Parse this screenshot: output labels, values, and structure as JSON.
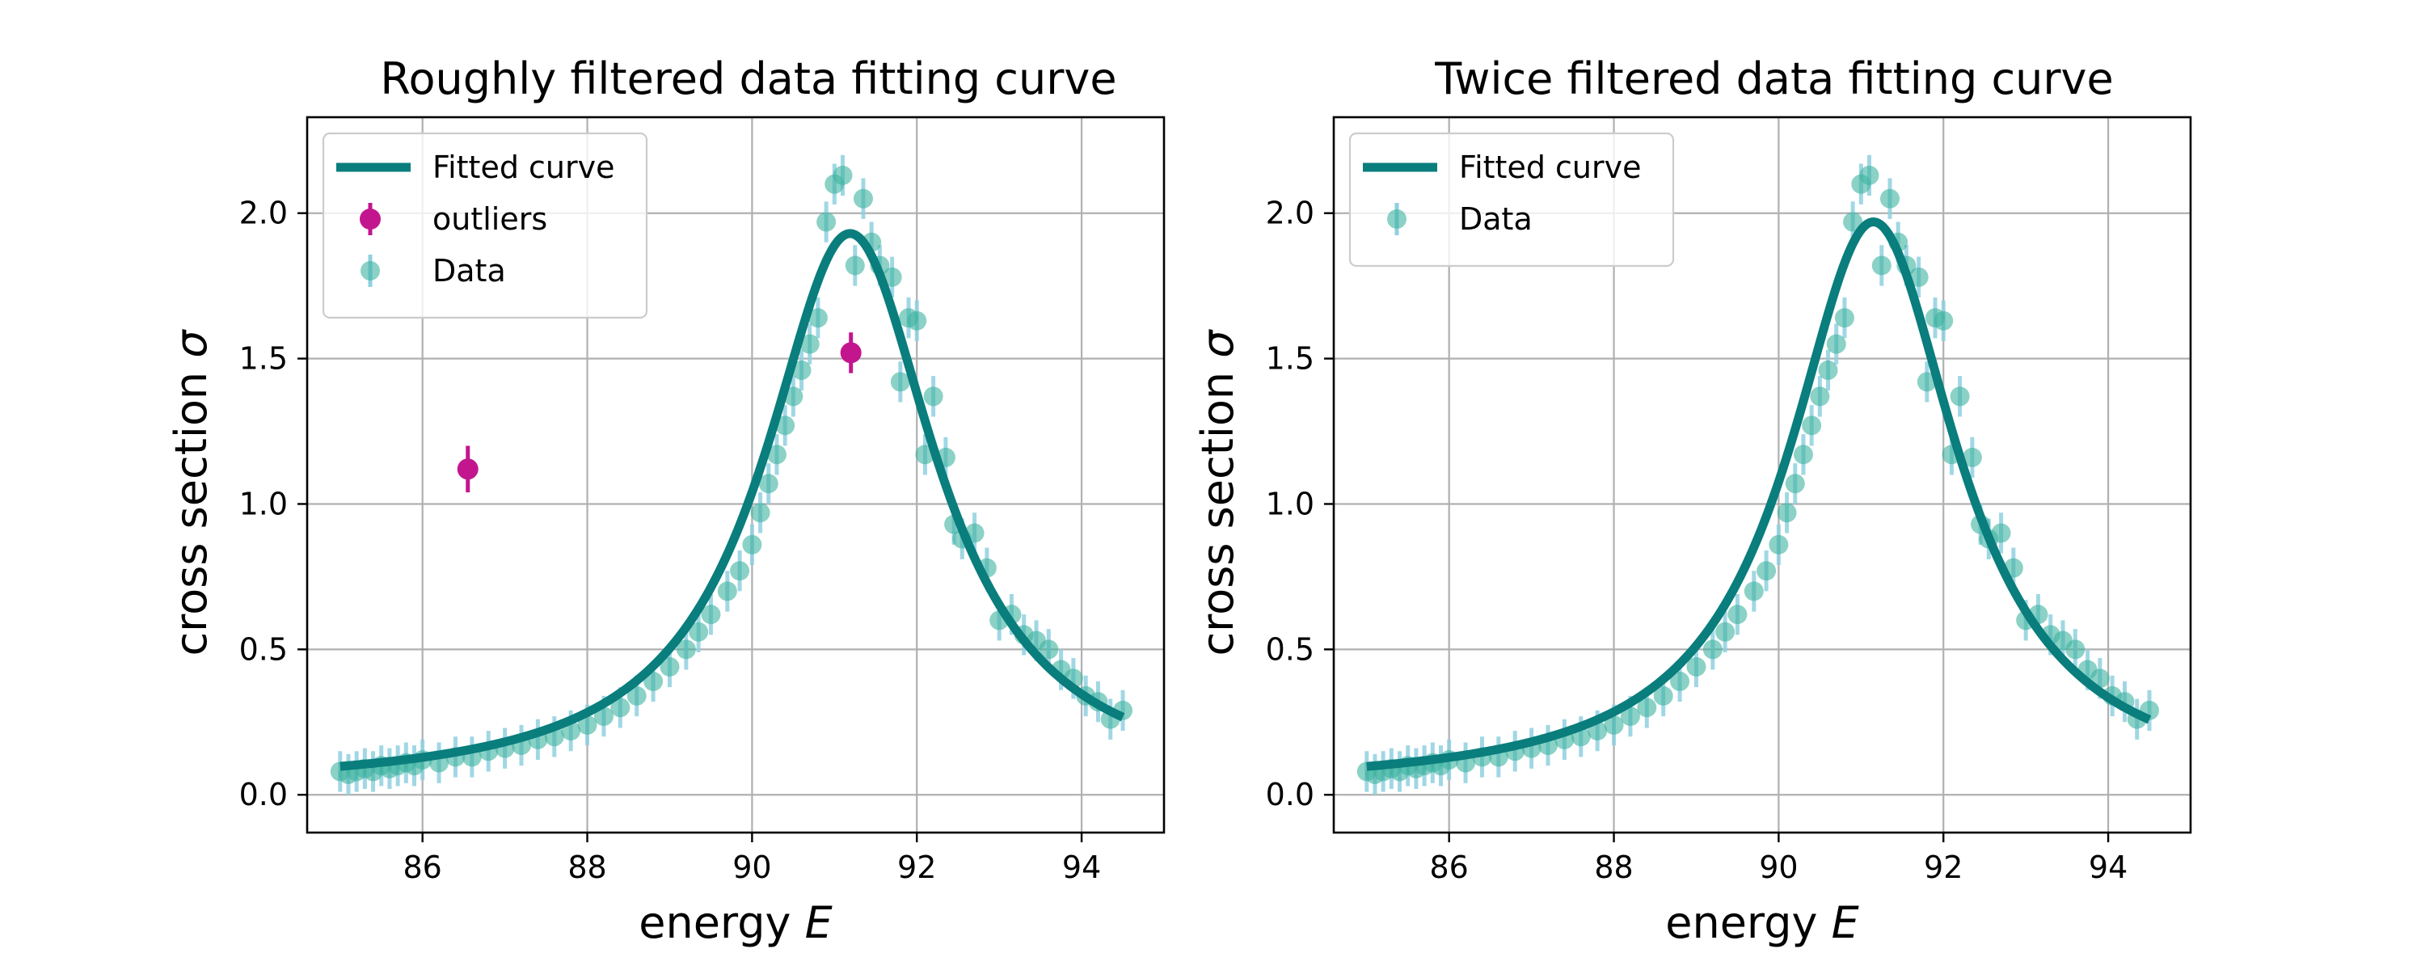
{
  "colors": {
    "fit": "#0a7d7d",
    "data_marker": "#3eb3a0",
    "data_errorbar": "#8fd0df",
    "outlier": "#c3168e"
  },
  "chart_data": [
    {
      "type": "scatter",
      "title": "Roughly filtered data fitting curve",
      "xlabel": "energy E",
      "ylabel": "cross section σ",
      "xlim": [
        84.6,
        95.0
      ],
      "ylim": [
        -0.13,
        2.33
      ],
      "xticks": [
        86,
        88,
        90,
        92,
        94
      ],
      "yticks": [
        0.0,
        0.5,
        1.0,
        1.5,
        2.0
      ],
      "grid": true,
      "legend_position": "top-left",
      "legend": [
        "Fitted curve",
        "outliers",
        "Data"
      ],
      "fit": {
        "name": "Fitted curve",
        "peak_x": 91.19,
        "peak_y": 1.93,
        "width": 2.55,
        "baseline": 0.02
      },
      "outliers": {
        "name": "outliers",
        "x": [
          86.55,
          91.2
        ],
        "y": [
          1.12,
          1.52
        ],
        "yerr": [
          0.08,
          0.07
        ]
      },
      "series": [
        {
          "name": "Data",
          "x": [
            85.0,
            85.1,
            85.2,
            85.3,
            85.4,
            85.5,
            85.6,
            85.7,
            85.8,
            85.9,
            86.0,
            86.2,
            86.4,
            86.6,
            86.8,
            87.0,
            87.2,
            87.4,
            87.6,
            87.8,
            88.0,
            88.2,
            88.4,
            88.6,
            88.8,
            89.0,
            89.2,
            89.35,
            89.5,
            89.7,
            89.85,
            90.0,
            90.1,
            90.2,
            90.3,
            90.4,
            90.5,
            90.6,
            90.7,
            90.8,
            90.9,
            91.0,
            91.1,
            91.25,
            91.35,
            91.45,
            91.55,
            91.7,
            91.8,
            91.9,
            92.0,
            92.1,
            92.2,
            92.35,
            92.45,
            92.55,
            92.7,
            92.85,
            93.0,
            93.15,
            93.3,
            93.45,
            93.6,
            93.75,
            93.9,
            94.05,
            94.2,
            94.35,
            94.5
          ],
          "y": [
            0.08,
            0.07,
            0.08,
            0.09,
            0.08,
            0.1,
            0.09,
            0.1,
            0.11,
            0.1,
            0.12,
            0.11,
            0.13,
            0.13,
            0.15,
            0.16,
            0.17,
            0.19,
            0.2,
            0.22,
            0.24,
            0.27,
            0.3,
            0.34,
            0.39,
            0.44,
            0.5,
            0.56,
            0.62,
            0.7,
            0.77,
            0.86,
            0.97,
            1.07,
            1.17,
            1.27,
            1.37,
            1.46,
            1.55,
            1.64,
            1.97,
            2.1,
            2.13,
            1.82,
            2.05,
            1.9,
            1.82,
            1.78,
            1.42,
            1.64,
            1.63,
            1.17,
            1.37,
            1.16,
            0.93,
            0.88,
            0.9,
            0.78,
            0.6,
            0.62,
            0.55,
            0.53,
            0.5,
            0.43,
            0.4,
            0.34,
            0.32,
            0.26,
            0.29
          ],
          "yerr": 0.07
        }
      ]
    },
    {
      "type": "scatter",
      "title": "Twice filtered data fitting curve",
      "xlabel": "energy E",
      "ylabel": "cross section σ",
      "xlim": [
        84.6,
        95.0
      ],
      "ylim": [
        -0.13,
        2.33
      ],
      "xticks": [
        86,
        88,
        90,
        92,
        94
      ],
      "yticks": [
        0.0,
        0.5,
        1.0,
        1.5,
        2.0
      ],
      "grid": true,
      "legend_position": "top-left",
      "legend": [
        "Fitted curve",
        "Data"
      ],
      "fit": {
        "name": "Fitted curve",
        "peak_x": 91.15,
        "peak_y": 1.97,
        "width": 2.5,
        "baseline": 0.02
      },
      "series": [
        {
          "name": "Data",
          "x": [
            85.0,
            85.1,
            85.2,
            85.3,
            85.4,
            85.5,
            85.6,
            85.7,
            85.8,
            85.9,
            86.0,
            86.2,
            86.4,
            86.6,
            86.8,
            87.0,
            87.2,
            87.4,
            87.6,
            87.8,
            88.0,
            88.2,
            88.4,
            88.6,
            88.8,
            89.0,
            89.2,
            89.35,
            89.5,
            89.7,
            89.85,
            90.0,
            90.1,
            90.2,
            90.3,
            90.4,
            90.5,
            90.6,
            90.7,
            90.8,
            90.9,
            91.0,
            91.1,
            91.25,
            91.35,
            91.45,
            91.55,
            91.7,
            91.8,
            91.9,
            92.0,
            92.1,
            92.2,
            92.35,
            92.45,
            92.55,
            92.7,
            92.85,
            93.0,
            93.15,
            93.3,
            93.45,
            93.6,
            93.75,
            93.9,
            94.05,
            94.2,
            94.35,
            94.5
          ],
          "y": [
            0.08,
            0.07,
            0.08,
            0.09,
            0.08,
            0.1,
            0.09,
            0.1,
            0.11,
            0.1,
            0.12,
            0.11,
            0.13,
            0.13,
            0.15,
            0.16,
            0.17,
            0.19,
            0.2,
            0.22,
            0.24,
            0.27,
            0.3,
            0.34,
            0.39,
            0.44,
            0.5,
            0.56,
            0.62,
            0.7,
            0.77,
            0.86,
            0.97,
            1.07,
            1.17,
            1.27,
            1.37,
            1.46,
            1.55,
            1.64,
            1.97,
            2.1,
            2.13,
            1.82,
            2.05,
            1.9,
            1.82,
            1.78,
            1.42,
            1.64,
            1.63,
            1.17,
            1.37,
            1.16,
            0.93,
            0.88,
            0.9,
            0.78,
            0.6,
            0.62,
            0.55,
            0.53,
            0.5,
            0.43,
            0.4,
            0.34,
            0.32,
            0.26,
            0.29
          ],
          "yerr": 0.07
        }
      ]
    }
  ]
}
